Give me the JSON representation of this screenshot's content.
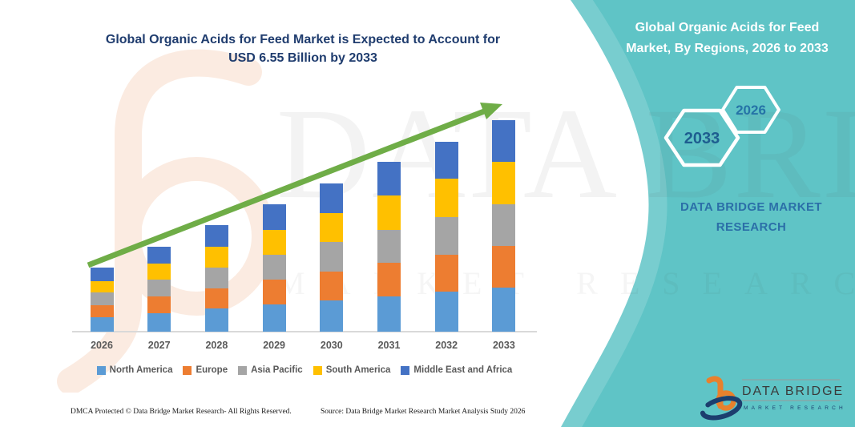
{
  "title": {
    "line1": "Global Organic Acids for Feed Market is Expected to Account for",
    "line2": "USD 6.55 Billion by 2033"
  },
  "side_panel": {
    "heading_line1": "Global Organic Acids for Feed",
    "heading_line2": "Market, By Regions, 2026 to 2033",
    "hexagon_back_label": "2033",
    "hexagon_front_label": "2026",
    "brand_line1": "DATA BRIDGE MARKET",
    "brand_line2": "RESEARCH",
    "panel_color": "#5FC4C6"
  },
  "logo": {
    "name": "DATA BRIDGE",
    "subname": "MARKET  RESEARCH",
    "b_color": "#E8812D",
    "swoosh_color": "#1C3E6E"
  },
  "watermarks": {
    "big_text": "DATA BRIDGE",
    "sub_text": "MARKET RESEARCH"
  },
  "footer": {
    "left": "DMCA Protected © Data Bridge Market Research-  All Rights Reserved.",
    "source": "Source: Data Bridge Market Research  Market Analysis Study 2026"
  },
  "chart_data": {
    "type": "bar",
    "stacked": true,
    "title": "Global Organic Acids for Feed Market is Expected to Account for USD 6.55 Billion by 2033",
    "unit": "USD Billion",
    "categories": [
      "2026",
      "2027",
      "2028",
      "2029",
      "2030",
      "2031",
      "2032",
      "2033"
    ],
    "series": [
      {
        "name": "North America",
        "color": "#5B9BD5",
        "values": [
          0.44,
          0.57,
          0.71,
          0.84,
          0.97,
          1.1,
          1.24,
          1.37
        ]
      },
      {
        "name": "Europe",
        "color": "#ED7D31",
        "values": [
          0.39,
          0.52,
          0.64,
          0.77,
          0.9,
          1.03,
          1.15,
          1.28
        ]
      },
      {
        "name": "Asia Pacific",
        "color": "#A5A5A5",
        "values": [
          0.38,
          0.51,
          0.64,
          0.77,
          0.9,
          1.03,
          1.16,
          1.29
        ]
      },
      {
        "name": "South America",
        "color": "#FFC000",
        "values": [
          0.36,
          0.5,
          0.64,
          0.77,
          0.91,
          1.05,
          1.18,
          1.32
        ]
      },
      {
        "name": "Middle East and Africa",
        "color": "#4472C4",
        "values": [
          0.41,
          0.54,
          0.66,
          0.79,
          0.91,
          1.04,
          1.16,
          1.29
        ]
      }
    ],
    "totals": [
      1.98,
      2.64,
      3.29,
      3.94,
      4.59,
      5.25,
      5.89,
      6.55
    ],
    "ylim": [
      0,
      7
    ],
    "grid": false,
    "legend_position": "bottom",
    "trend_arrow": true,
    "trend_arrow_color": "#6FAD47"
  },
  "colors": {
    "title_text": "#1F3C6E",
    "axis_text": "#595959",
    "axis_line": "#D9D9D9",
    "teal_panel": "#5FC4C6",
    "hexagon_back_text": "#1E5E90",
    "hexagon_front_text": "#2573A7"
  }
}
